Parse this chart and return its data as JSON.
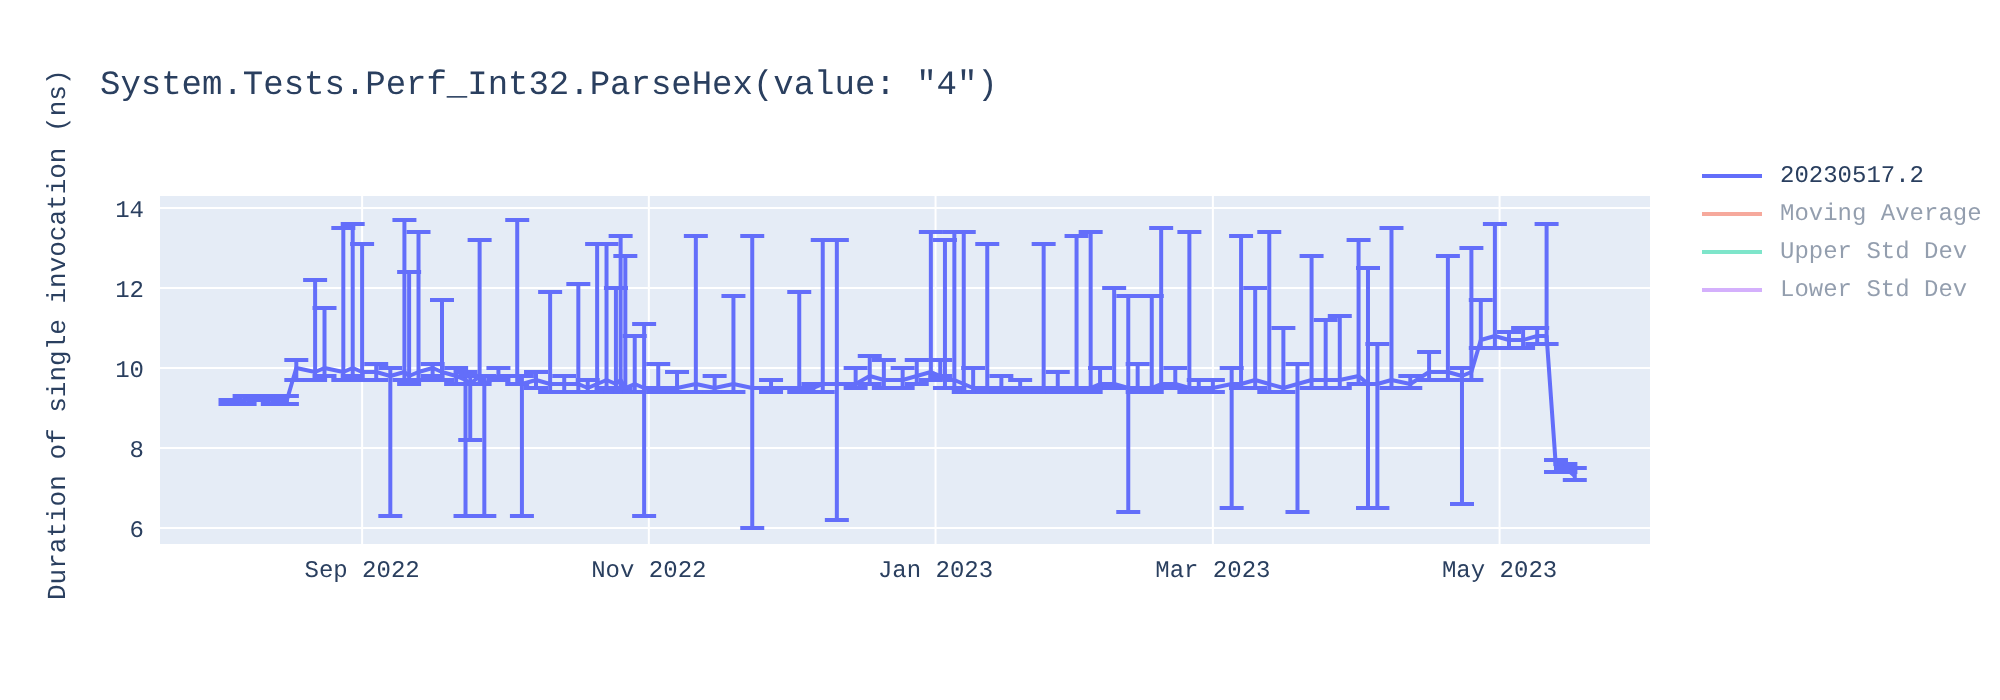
{
  "chart_data": {
    "type": "line",
    "title": "System.Tests.Perf_Int32.ParseHex(value: \"4\")",
    "ylabel": "Duration of single invocation (ns)",
    "x": [
      "2022-08-04",
      "2022-08-07",
      "2022-08-10",
      "2022-08-13",
      "2022-08-16",
      "2022-08-18",
      "2022-08-22",
      "2022-08-24",
      "2022-08-28",
      "2022-08-30",
      "2022-09-01",
      "2022-09-04",
      "2022-09-07",
      "2022-09-10",
      "2022-09-11",
      "2022-09-13",
      "2022-09-16",
      "2022-09-18",
      "2022-09-21",
      "2022-09-23",
      "2022-09-24",
      "2022-09-26",
      "2022-09-27",
      "2022-09-30",
      "2022-10-04",
      "2022-10-05",
      "2022-10-08",
      "2022-10-11",
      "2022-10-14",
      "2022-10-17",
      "2022-10-19",
      "2022-10-21",
      "2022-10-23",
      "2022-10-25",
      "2022-10-26",
      "2022-10-27",
      "2022-10-29",
      "2022-10-31",
      "2022-11-03",
      "2022-11-07",
      "2022-11-11",
      "2022-11-15",
      "2022-11-19",
      "2022-11-23",
      "2022-11-27",
      "2022-12-03",
      "2022-12-06",
      "2022-12-08",
      "2022-12-11",
      "2022-12-15",
      "2022-12-18",
      "2022-12-21",
      "2022-12-25",
      "2022-12-28",
      "2022-12-31",
      "2023-01-02",
      "2023-01-03",
      "2023-01-05",
      "2023-01-07",
      "2023-01-09",
      "2023-01-12",
      "2023-01-15",
      "2023-01-19",
      "2023-01-24",
      "2023-01-27",
      "2023-01-31",
      "2023-02-03",
      "2023-02-05",
      "2023-02-08",
      "2023-02-11",
      "2023-02-13",
      "2023-02-16",
      "2023-02-18",
      "2023-02-21",
      "2023-02-24",
      "2023-02-26",
      "2023-03-01",
      "2023-03-05",
      "2023-03-07",
      "2023-03-10",
      "2023-03-13",
      "2023-03-16",
      "2023-03-19",
      "2023-03-22",
      "2023-03-25",
      "2023-03-28",
      "2023-04-01",
      "2023-04-03",
      "2023-04-05",
      "2023-04-08",
      "2023-04-12",
      "2023-04-16",
      "2023-04-20",
      "2023-04-23",
      "2023-04-25",
      "2023-04-27",
      "2023-04-30",
      "2023-05-03",
      "2023-05-06",
      "2023-05-09",
      "2023-05-11",
      "2023-05-13",
      "2023-05-15",
      "2023-05-17"
    ],
    "series": [
      {
        "name": "20230517.2",
        "color": "#636efa",
        "values": [
          9.15,
          9.2,
          9.25,
          9.2,
          9.2,
          10.0,
          9.9,
          10.0,
          9.9,
          10.0,
          9.9,
          9.9,
          9.8,
          9.9,
          9.8,
          9.9,
          10.0,
          9.9,
          9.8,
          9.7,
          9.6,
          9.8,
          9.6,
          9.8,
          9.8,
          9.6,
          9.7,
          9.6,
          9.6,
          9.6,
          9.5,
          9.6,
          9.7,
          9.6,
          9.7,
          9.5,
          9.6,
          9.5,
          9.5,
          9.5,
          9.6,
          9.5,
          9.6,
          9.5,
          9.5,
          9.5,
          9.5,
          9.6,
          9.6,
          9.6,
          9.8,
          9.7,
          9.7,
          9.8,
          9.9,
          9.8,
          9.7,
          9.7,
          9.6,
          9.5,
          9.5,
          9.5,
          9.5,
          9.5,
          9.5,
          9.5,
          9.5,
          9.6,
          9.6,
          9.5,
          9.5,
          9.5,
          9.6,
          9.6,
          9.5,
          9.5,
          9.5,
          9.6,
          9.6,
          9.7,
          9.6,
          9.5,
          9.6,
          9.7,
          9.7,
          9.7,
          9.8,
          9.6,
          9.6,
          9.7,
          9.6,
          9.9,
          9.9,
          9.8,
          9.9,
          10.7,
          10.8,
          10.7,
          10.7,
          10.8,
          10.8,
          7.5,
          7.5,
          7.3
        ],
        "errors": [
          [
            9.1,
            9.2
          ],
          [
            9.1,
            9.3
          ],
          [
            9.2,
            9.3
          ],
          [
            9.1,
            9.3
          ],
          [
            9.1,
            9.3
          ],
          [
            9.7,
            10.2
          ],
          [
            9.7,
            12.2
          ],
          [
            9.8,
            11.5
          ],
          [
            9.7,
            13.5
          ],
          [
            9.8,
            13.6
          ],
          [
            9.7,
            13.1
          ],
          [
            9.7,
            10.1
          ],
          [
            6.3,
            10.0
          ],
          [
            9.7,
            13.7
          ],
          [
            9.6,
            12.4
          ],
          [
            9.7,
            13.4
          ],
          [
            9.8,
            10.1
          ],
          [
            9.7,
            11.7
          ],
          [
            9.6,
            10.0
          ],
          [
            6.3,
            9.9
          ],
          [
            8.2,
            9.8
          ],
          [
            9.6,
            13.2
          ],
          [
            6.3,
            9.8
          ],
          [
            9.7,
            10.0
          ],
          [
            9.6,
            13.7
          ],
          [
            6.3,
            9.8
          ],
          [
            9.5,
            9.9
          ],
          [
            9.4,
            11.9
          ],
          [
            9.4,
            9.8
          ],
          [
            9.4,
            12.1
          ],
          [
            9.4,
            9.7
          ],
          [
            9.4,
            13.1
          ],
          [
            9.5,
            13.1
          ],
          [
            9.4,
            12.0
          ],
          [
            9.5,
            13.3
          ],
          [
            9.4,
            12.8
          ],
          [
            9.4,
            10.8
          ],
          [
            6.3,
            11.1
          ],
          [
            9.4,
            10.1
          ],
          [
            9.4,
            9.9
          ],
          [
            9.4,
            13.3
          ],
          [
            9.4,
            9.8
          ],
          [
            9.4,
            11.8
          ],
          [
            6.0,
            13.3
          ],
          [
            9.4,
            9.7
          ],
          [
            9.4,
            11.9
          ],
          [
            9.4,
            9.6
          ],
          [
            9.4,
            13.2
          ],
          [
            6.2,
            13.2
          ],
          [
            9.5,
            10.0
          ],
          [
            9.6,
            10.3
          ],
          [
            9.5,
            10.2
          ],
          [
            9.5,
            10.0
          ],
          [
            9.6,
            10.2
          ],
          [
            9.7,
            13.4
          ],
          [
            9.8,
            10.2
          ],
          [
            9.5,
            13.2
          ],
          [
            9.5,
            13.4
          ],
          [
            9.4,
            13.4
          ],
          [
            9.4,
            10.0
          ],
          [
            9.4,
            13.1
          ],
          [
            9.4,
            9.8
          ],
          [
            9.4,
            9.7
          ],
          [
            9.4,
            13.1
          ],
          [
            9.4,
            9.9
          ],
          [
            9.4,
            13.3
          ],
          [
            9.4,
            13.4
          ],
          [
            9.5,
            10.0
          ],
          [
            9.5,
            12.0
          ],
          [
            6.4,
            11.8
          ],
          [
            9.4,
            10.1
          ],
          [
            9.4,
            11.8
          ],
          [
            9.5,
            13.5
          ],
          [
            9.5,
            10.0
          ],
          [
            9.4,
            13.4
          ],
          [
            9.4,
            9.7
          ],
          [
            9.4,
            9.7
          ],
          [
            6.5,
            10.0
          ],
          [
            9.5,
            13.3
          ],
          [
            9.5,
            12.0
          ],
          [
            9.4,
            13.4
          ],
          [
            9.4,
            11.0
          ],
          [
            6.4,
            10.1
          ],
          [
            9.5,
            12.8
          ],
          [
            9.5,
            11.2
          ],
          [
            9.5,
            11.3
          ],
          [
            9.6,
            13.2
          ],
          [
            6.5,
            12.5
          ],
          [
            6.5,
            10.6
          ],
          [
            9.5,
            13.5
          ],
          [
            9.5,
            9.8
          ],
          [
            9.7,
            10.4
          ],
          [
            9.7,
            12.8
          ],
          [
            6.6,
            10.0
          ],
          [
            9.7,
            13.0
          ],
          [
            10.5,
            11.7
          ],
          [
            10.5,
            13.6
          ],
          [
            10.5,
            10.9
          ],
          [
            10.5,
            11.0
          ],
          [
            10.6,
            11.0
          ],
          [
            10.6,
            13.6
          ],
          [
            7.4,
            7.7
          ],
          [
            7.4,
            7.6
          ],
          [
            7.2,
            7.5
          ]
        ]
      },
      {
        "name": "Moving Average",
        "color": "#ef553b",
        "values": [
          null,
          null,
          null,
          null,
          null,
          null,
          null,
          null,
          null,
          null,
          null,
          null,
          null,
          null,
          null,
          null,
          null,
          null,
          null,
          null,
          null,
          null,
          null,
          null,
          null,
          null,
          null,
          null,
          null,
          null,
          null,
          null,
          null,
          null,
          null,
          null,
          null,
          null,
          null,
          null,
          null,
          null,
          null,
          null,
          null,
          null,
          null,
          null,
          null,
          null,
          null,
          null,
          null,
          null,
          null,
          null,
          null,
          null,
          null,
          null,
          null,
          null,
          null,
          null,
          null,
          null,
          null,
          null,
          null,
          null,
          null,
          null,
          null,
          null,
          null,
          null,
          null,
          null,
          null,
          null,
          null,
          null,
          null,
          null,
          null,
          null,
          null,
          null,
          null,
          null,
          null,
          null,
          null,
          null,
          null,
          null,
          null,
          null,
          null,
          null,
          null,
          null,
          null,
          null
        ]
      },
      {
        "name": "Upper Std Dev",
        "color": "#00cc96",
        "values": [
          null,
          null,
          null,
          null,
          null,
          null,
          null,
          null,
          null,
          null,
          null,
          null,
          null,
          null,
          null,
          null,
          null,
          null,
          null,
          null,
          null,
          null,
          null,
          null,
          null,
          null,
          null,
          null,
          null,
          null,
          null,
          null,
          null,
          null,
          null,
          null,
          null,
          null,
          null,
          null,
          null,
          null,
          null,
          null,
          null,
          null,
          null,
          null,
          null,
          null,
          null,
          null,
          null,
          null,
          null,
          null,
          null,
          null,
          null,
          null,
          null,
          null,
          null,
          null,
          null,
          null,
          null,
          null,
          null,
          null,
          null,
          null,
          null,
          null,
          null,
          null,
          null,
          null,
          null,
          null,
          null,
          null,
          null,
          null,
          null,
          null,
          null,
          null,
          null,
          null,
          null,
          null,
          null,
          null,
          null,
          null,
          null,
          null,
          null,
          null,
          null,
          null,
          null,
          null
        ]
      },
      {
        "name": "Lower Std Dev",
        "color": "#ab63fa",
        "values": [
          null,
          null,
          null,
          null,
          null,
          null,
          null,
          null,
          null,
          null,
          null,
          null,
          null,
          null,
          null,
          null,
          null,
          null,
          null,
          null,
          null,
          null,
          null,
          null,
          null,
          null,
          null,
          null,
          null,
          null,
          null,
          null,
          null,
          null,
          null,
          null,
          null,
          null,
          null,
          null,
          null,
          null,
          null,
          null,
          null,
          null,
          null,
          null,
          null,
          null,
          null,
          null,
          null,
          null,
          null,
          null,
          null,
          null,
          null,
          null,
          null,
          null,
          null,
          null,
          null,
          null,
          null,
          null,
          null,
          null,
          null,
          null,
          null,
          null,
          null,
          null,
          null,
          null,
          null,
          null,
          null,
          null,
          null,
          null,
          null,
          null,
          null,
          null,
          null,
          null,
          null,
          null,
          null,
          null,
          null,
          null,
          null,
          null,
          null,
          null,
          null,
          null,
          null,
          null
        ]
      }
    ],
    "xlim": [
      "2022-07-20",
      "2023-06-02"
    ],
    "xticks": [
      {
        "value": "2022-09-01",
        "label": "Sep 2022"
      },
      {
        "value": "2022-11-01",
        "label": "Nov 2022"
      },
      {
        "value": "2023-01-01",
        "label": "Jan 2023"
      },
      {
        "value": "2023-03-01",
        "label": "Mar 2023"
      },
      {
        "value": "2023-05-01",
        "label": "May 2023"
      }
    ],
    "ylim": [
      5.6,
      14.3
    ],
    "yticks": [
      6,
      8,
      10,
      12,
      14
    ],
    "grid": true,
    "legend": "top right",
    "marker": "none",
    "line_style": "solid"
  }
}
